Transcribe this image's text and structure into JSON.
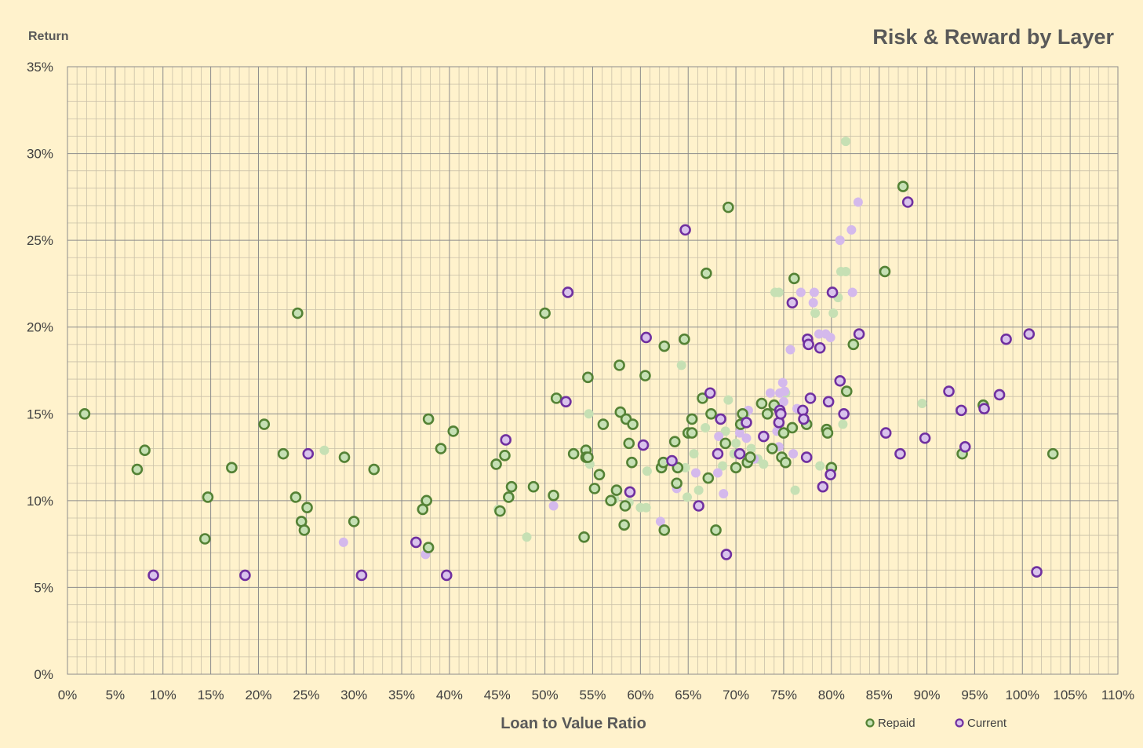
{
  "chart_data": {
    "type": "scatter",
    "title": "Risk & Reward by Layer",
    "xlabel": "Loan to Value Ratio",
    "ylabel": "Return",
    "xlim": [
      0,
      110
    ],
    "ylim": [
      0,
      35
    ],
    "x_ticks": [
      "0%",
      "5%",
      "10%",
      "15%",
      "20%",
      "25%",
      "30%",
      "35%",
      "40%",
      "45%",
      "50%",
      "55%",
      "60%",
      "65%",
      "70%",
      "75%",
      "80%",
      "85%",
      "90%",
      "95%",
      "100%",
      "105%",
      "110%"
    ],
    "y_ticks": [
      "0%",
      "5%",
      "10%",
      "15%",
      "20%",
      "25%",
      "30%",
      "35%"
    ],
    "grid": "major and minor",
    "legend": {
      "position": "bottom-right",
      "entries": [
        "Repaid",
        "Current"
      ]
    },
    "colors": {
      "background": "#fff2cc",
      "grid_major": "#8c8c8c",
      "grid_minor": "#c9c0a8",
      "repaid_stroke": "#548235",
      "repaid_fill": "#c5e0b4",
      "repaid_light": "#c6e0b4",
      "current_stroke": "#7030a0",
      "current_fill": "#d9c3ec",
      "current_light": "#d4b9ec",
      "text": "#595959"
    },
    "series": [
      {
        "name": "Repaid",
        "style": "outlined",
        "points": [
          [
            1.8,
            15
          ],
          [
            7.3,
            11.8
          ],
          [
            8.1,
            12.9
          ],
          [
            14.4,
            7.8
          ],
          [
            14.7,
            10.2
          ],
          [
            17.2,
            11.9
          ],
          [
            20.6,
            14.4
          ],
          [
            22.6,
            12.7
          ],
          [
            23.9,
            10.2
          ],
          [
            24.1,
            20.8
          ],
          [
            24.5,
            8.8
          ],
          [
            24.8,
            8.3
          ],
          [
            25.1,
            9.6
          ],
          [
            29.0,
            12.5
          ],
          [
            30.0,
            8.8
          ],
          [
            32.1,
            11.8
          ],
          [
            37.2,
            9.5
          ],
          [
            37.6,
            10.0
          ],
          [
            37.8,
            7.3
          ],
          [
            37.8,
            14.7
          ],
          [
            39.1,
            13.0
          ],
          [
            40.4,
            14.0
          ],
          [
            44.9,
            12.1
          ],
          [
            45.3,
            9.4
          ],
          [
            45.8,
            12.6
          ],
          [
            46.2,
            10.2
          ],
          [
            46.5,
            10.8
          ],
          [
            48.8,
            10.8
          ],
          [
            50.0,
            20.8
          ],
          [
            50.9,
            10.3
          ],
          [
            51.2,
            15.9
          ],
          [
            53.0,
            12.7
          ],
          [
            54.1,
            7.9
          ],
          [
            54.3,
            12.9
          ],
          [
            54.3,
            12.5
          ],
          [
            54.5,
            12.5
          ],
          [
            54.5,
            17.1
          ],
          [
            55.2,
            10.7
          ],
          [
            55.7,
            11.5
          ],
          [
            56.1,
            14.4
          ],
          [
            56.9,
            10.0
          ],
          [
            57.5,
            10.6
          ],
          [
            57.8,
            17.8
          ],
          [
            57.9,
            15.1
          ],
          [
            58.3,
            8.6
          ],
          [
            58.4,
            9.7
          ],
          [
            58.5,
            14.7
          ],
          [
            58.8,
            13.3
          ],
          [
            59.1,
            12.2
          ],
          [
            59.2,
            14.4
          ],
          [
            60.5,
            17.2
          ],
          [
            62.2,
            11.9
          ],
          [
            62.4,
            12.2
          ],
          [
            62.5,
            18.9
          ],
          [
            62.5,
            8.3
          ],
          [
            63.6,
            13.4
          ],
          [
            63.8,
            11.0
          ],
          [
            63.9,
            11.9
          ],
          [
            64.6,
            19.3
          ],
          [
            65.0,
            13.9
          ],
          [
            65.4,
            14.7
          ],
          [
            65.4,
            13.9
          ],
          [
            66.5,
            15.9
          ],
          [
            66.9,
            23.1
          ],
          [
            67.1,
            11.3
          ],
          [
            67.4,
            15.0
          ],
          [
            67.9,
            8.3
          ],
          [
            68.9,
            13.3
          ],
          [
            69.2,
            26.9
          ],
          [
            70.0,
            11.9
          ],
          [
            70.5,
            14.4
          ],
          [
            70.7,
            15.0
          ],
          [
            71.2,
            12.2
          ],
          [
            71.5,
            12.5
          ],
          [
            72.7,
            15.6
          ],
          [
            73.3,
            15.0
          ],
          [
            73.8,
            13.0
          ],
          [
            74.0,
            15.5
          ],
          [
            74.8,
            12.5
          ],
          [
            75.0,
            13.9
          ],
          [
            75.2,
            12.2
          ],
          [
            75.9,
            14.2
          ],
          [
            76.1,
            22.8
          ],
          [
            77.4,
            14.4
          ],
          [
            79.5,
            14.1
          ],
          [
            79.6,
            13.9
          ],
          [
            80.0,
            11.9
          ],
          [
            82.3,
            19.0
          ],
          [
            81.6,
            16.3
          ],
          [
            85.6,
            23.2
          ],
          [
            87.5,
            28.1
          ],
          [
            93.7,
            12.7
          ],
          [
            95.9,
            15.5
          ],
          [
            103.2,
            12.7
          ]
        ]
      },
      {
        "name": "Current",
        "style": "outlined",
        "points": [
          [
            9.0,
            5.7
          ],
          [
            18.6,
            5.7
          ],
          [
            25.2,
            12.7
          ],
          [
            30.8,
            5.7
          ],
          [
            36.5,
            7.6
          ],
          [
            39.7,
            5.7
          ],
          [
            45.9,
            13.5
          ],
          [
            52.2,
            15.7
          ],
          [
            52.4,
            22.0
          ],
          [
            58.9,
            10.5
          ],
          [
            60.3,
            13.2
          ],
          [
            60.6,
            19.4
          ],
          [
            63.3,
            12.3
          ],
          [
            64.7,
            25.6
          ],
          [
            66.1,
            9.7
          ],
          [
            67.3,
            16.2
          ],
          [
            68.1,
            12.7
          ],
          [
            68.4,
            14.7
          ],
          [
            69.0,
            6.9
          ],
          [
            70.4,
            12.7
          ],
          [
            71.1,
            14.5
          ],
          [
            72.9,
            13.7
          ],
          [
            74.5,
            14.5
          ],
          [
            74.6,
            15.2
          ],
          [
            74.7,
            15.0
          ],
          [
            75.9,
            21.4
          ],
          [
            77.0,
            15.2
          ],
          [
            77.1,
            14.7
          ],
          [
            77.4,
            12.5
          ],
          [
            77.5,
            19.3
          ],
          [
            77.6,
            19.0
          ],
          [
            77.8,
            15.9
          ],
          [
            78.8,
            18.8
          ],
          [
            79.1,
            10.8
          ],
          [
            79.7,
            15.7
          ],
          [
            79.9,
            11.5
          ],
          [
            80.1,
            22.0
          ],
          [
            80.9,
            16.9
          ],
          [
            81.3,
            15.0
          ],
          [
            82.9,
            19.6
          ],
          [
            85.7,
            13.9
          ],
          [
            87.2,
            12.7
          ],
          [
            88.0,
            27.2
          ],
          [
            89.8,
            13.6
          ],
          [
            92.3,
            16.3
          ],
          [
            93.6,
            15.2
          ],
          [
            94.0,
            13.1
          ],
          [
            96.0,
            15.3
          ],
          [
            97.6,
            16.1
          ],
          [
            98.3,
            19.3
          ],
          [
            100.7,
            19.6
          ],
          [
            101.5,
            5.9
          ]
        ]
      },
      {
        "name": "",
        "style": "light-green",
        "points": [
          [
            26.9,
            12.9
          ],
          [
            45.1,
            9.5
          ],
          [
            48.1,
            7.9
          ],
          [
            54.6,
            15.0
          ],
          [
            54.7,
            12.1
          ],
          [
            57.3,
            10.1
          ],
          [
            58.8,
            9.9
          ],
          [
            60.0,
            9.6
          ],
          [
            60.6,
            9.6
          ],
          [
            60.7,
            11.7
          ],
          [
            64.3,
            17.8
          ],
          [
            64.7,
            11.9
          ],
          [
            64.9,
            10.2
          ],
          [
            65.6,
            12.7
          ],
          [
            66.1,
            10.6
          ],
          [
            66.8,
            14.2
          ],
          [
            68.6,
            12.0
          ],
          [
            68.9,
            14.0
          ],
          [
            69.2,
            15.8
          ],
          [
            69.8,
            12.7
          ],
          [
            70.0,
            13.3
          ],
          [
            71.0,
            15.0
          ],
          [
            71.6,
            13.0
          ],
          [
            72.3,
            12.4
          ],
          [
            72.9,
            12.1
          ],
          [
            74.1,
            22.0
          ],
          [
            74.5,
            22.0
          ],
          [
            75.2,
            16.2
          ],
          [
            76.2,
            10.6
          ],
          [
            78.3,
            20.8
          ],
          [
            78.8,
            12.0
          ],
          [
            80.2,
            20.8
          ],
          [
            80.7,
            21.7
          ],
          [
            81.0,
            23.2
          ],
          [
            81.5,
            23.2
          ],
          [
            81.5,
            30.7
          ],
          [
            81.2,
            14.4
          ],
          [
            89.5,
            15.6
          ]
        ]
      },
      {
        "name": "",
        "style": "light-purple",
        "points": [
          [
            28.9,
            7.6
          ],
          [
            37.5,
            6.9
          ],
          [
            50.9,
            9.7
          ],
          [
            62.1,
            8.8
          ],
          [
            63.8,
            10.7
          ],
          [
            65.8,
            11.6
          ],
          [
            68.1,
            11.6
          ],
          [
            68.7,
            10.4
          ],
          [
            68.2,
            13.7
          ],
          [
            70.4,
            13.9
          ],
          [
            71.1,
            13.6
          ],
          [
            71.3,
            15.2
          ],
          [
            71.9,
            12.4
          ],
          [
            73.6,
            16.2
          ],
          [
            74.6,
            16.2
          ],
          [
            74.9,
            16.8
          ],
          [
            75.1,
            16.3
          ],
          [
            75.0,
            15.7
          ],
          [
            75.7,
            18.7
          ],
          [
            76.0,
            12.7
          ],
          [
            76.4,
            15.3
          ],
          [
            76.8,
            22.0
          ],
          [
            78.1,
            21.4
          ],
          [
            78.2,
            22.0
          ],
          [
            78.7,
            19.6
          ],
          [
            79.4,
            19.6
          ],
          [
            79.9,
            19.4
          ],
          [
            80.9,
            25.0
          ],
          [
            82.1,
            25.6
          ],
          [
            82.2,
            22.0
          ],
          [
            82.8,
            27.2
          ],
          [
            74.3,
            14.0
          ],
          [
            74.5,
            13.1
          ]
        ]
      }
    ]
  }
}
